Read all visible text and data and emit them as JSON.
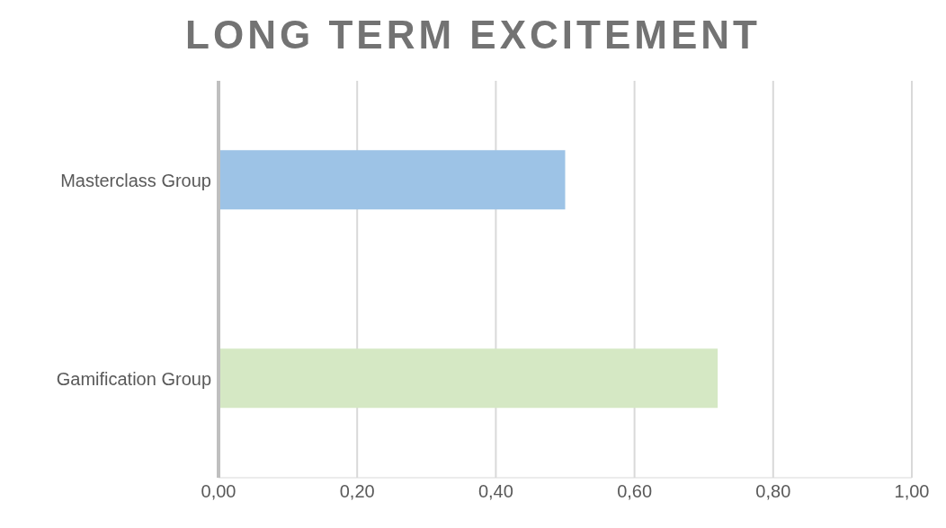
{
  "chart_data": {
    "type": "bar",
    "orientation": "horizontal",
    "title": "LONG TERM EXCITEMENT",
    "categories": [
      "Masterclass Group",
      "Gamification Group"
    ],
    "values": [
      0.5,
      0.72
    ],
    "colors": [
      "#9dc3e6",
      "#d5e8c4"
    ],
    "xlim": [
      0,
      1
    ],
    "xticks": [
      {
        "value": 0,
        "label": "0,00"
      },
      {
        "value": 0.2,
        "label": "0,20"
      },
      {
        "value": 0.4,
        "label": "0,40"
      },
      {
        "value": 0.6,
        "label": "0,60"
      },
      {
        "value": 0.8,
        "label": "0,80"
      },
      {
        "value": 1,
        "label": "1,00"
      }
    ],
    "grid": "x"
  }
}
